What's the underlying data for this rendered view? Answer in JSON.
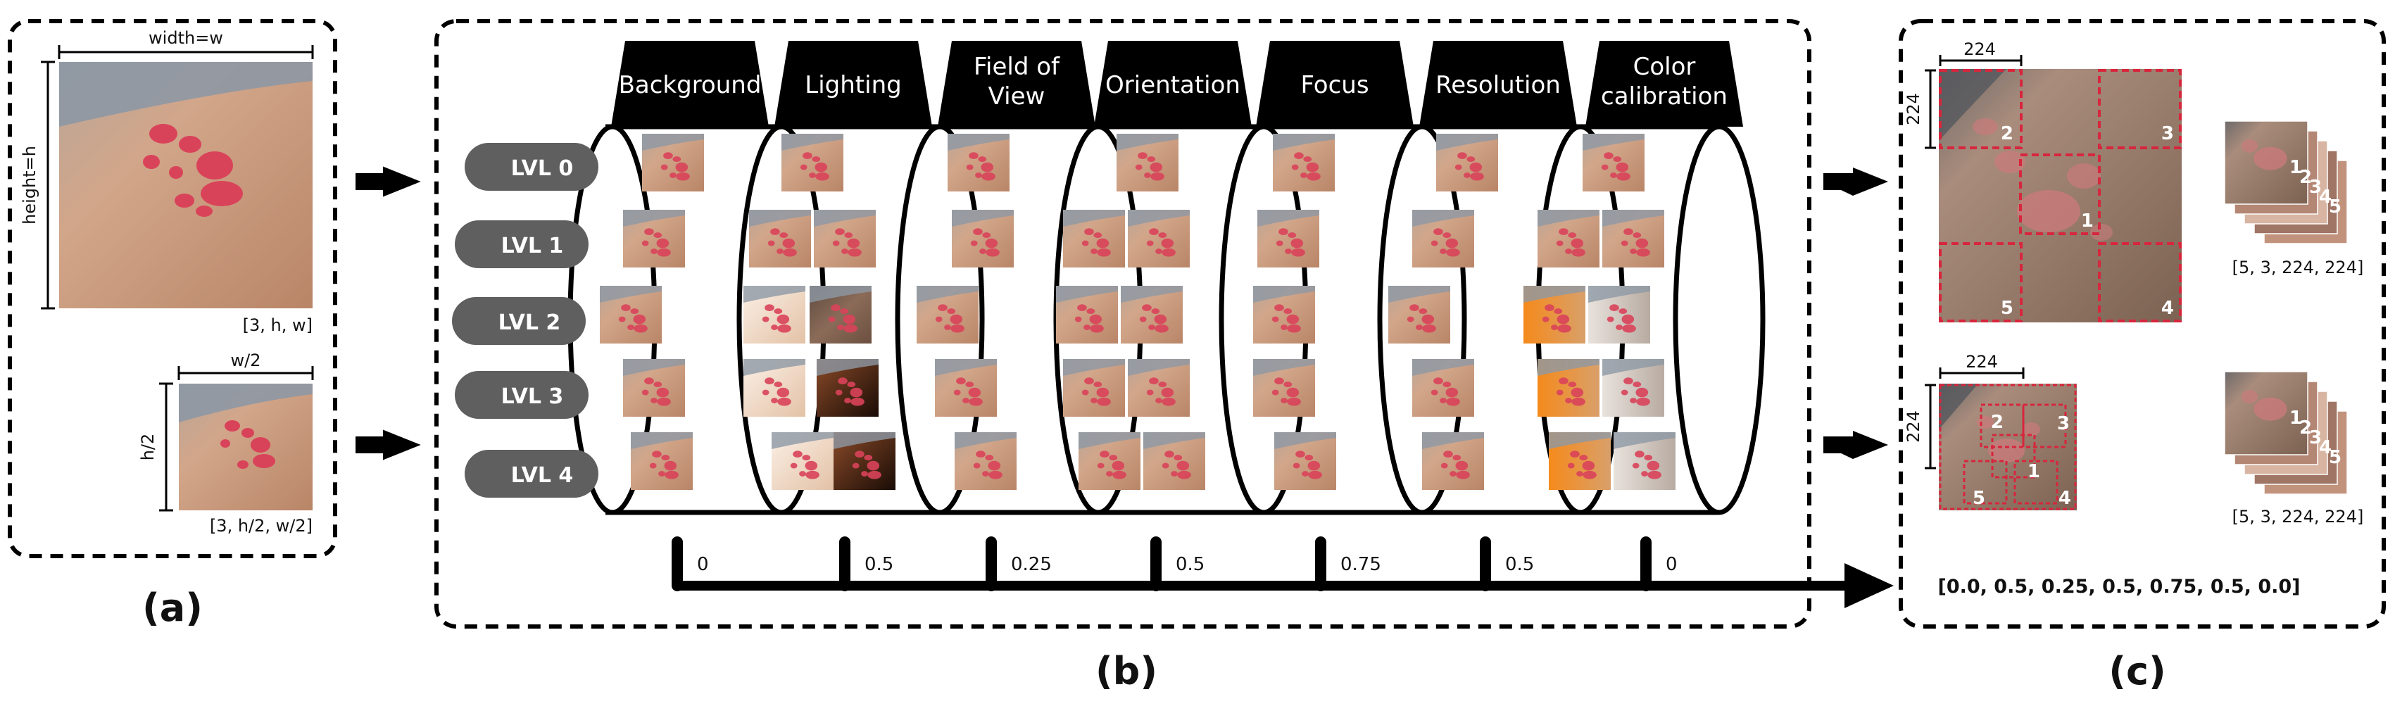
{
  "panel_a": {
    "width_label": "width=w",
    "height_label": "height=h",
    "shape_full": "[3, h, w]",
    "half_width_label": "w/2",
    "half_height_label": "h/2",
    "shape_half": "[3, h/2, w/2]",
    "caption": "(a)"
  },
  "panel_b": {
    "caption": "(b)",
    "tabs": [
      "Background",
      "Lighting",
      "Field of View",
      "Orientation",
      "Focus",
      "Resolution",
      "Color calibration"
    ],
    "tab_lines": [
      [
        "Background"
      ],
      [
        "Lighting"
      ],
      [
        "Field of",
        "View"
      ],
      [
        "Orientation"
      ],
      [
        "Focus"
      ],
      [
        "Resolution"
      ],
      [
        "Color",
        "calibration"
      ]
    ],
    "levels": [
      "LVL 0",
      "LVL 1",
      "LVL 2",
      "LVL 3",
      "LVL 4"
    ],
    "axis_values": [
      "0",
      "0.5",
      "0.25",
      "0.5",
      "0.75",
      "0.5",
      "0"
    ]
  },
  "panel_c": {
    "caption": "(c)",
    "patch_size_top_x": "224",
    "patch_size_top_y": "224",
    "patch_size_bottom_x": "224",
    "patch_size_bottom_y": "224",
    "top_crop_numbers": [
      "1",
      "2",
      "3",
      "4",
      "5"
    ],
    "bottom_crop_numbers": [
      "1",
      "2",
      "3",
      "4",
      "5"
    ],
    "stack_numbers_top": [
      "1",
      "2",
      "3",
      "4",
      "5"
    ],
    "stack_numbers_bottom": [
      "1",
      "2",
      "3",
      "4",
      "5"
    ],
    "shape_top": "[5, 3, 224, 224]",
    "shape_bottom": "[5, 3, 224, 224]",
    "level_vector": "[0.0, 0.5, 0.25, 0.5, 0.75, 0.5, 0.0]"
  },
  "colors": {
    "lesion": "#d9435a",
    "skin": "#c89578",
    "dark_tab": "#000000",
    "level_pill": "#5f5f5f",
    "crop_box": "#d7263d"
  }
}
